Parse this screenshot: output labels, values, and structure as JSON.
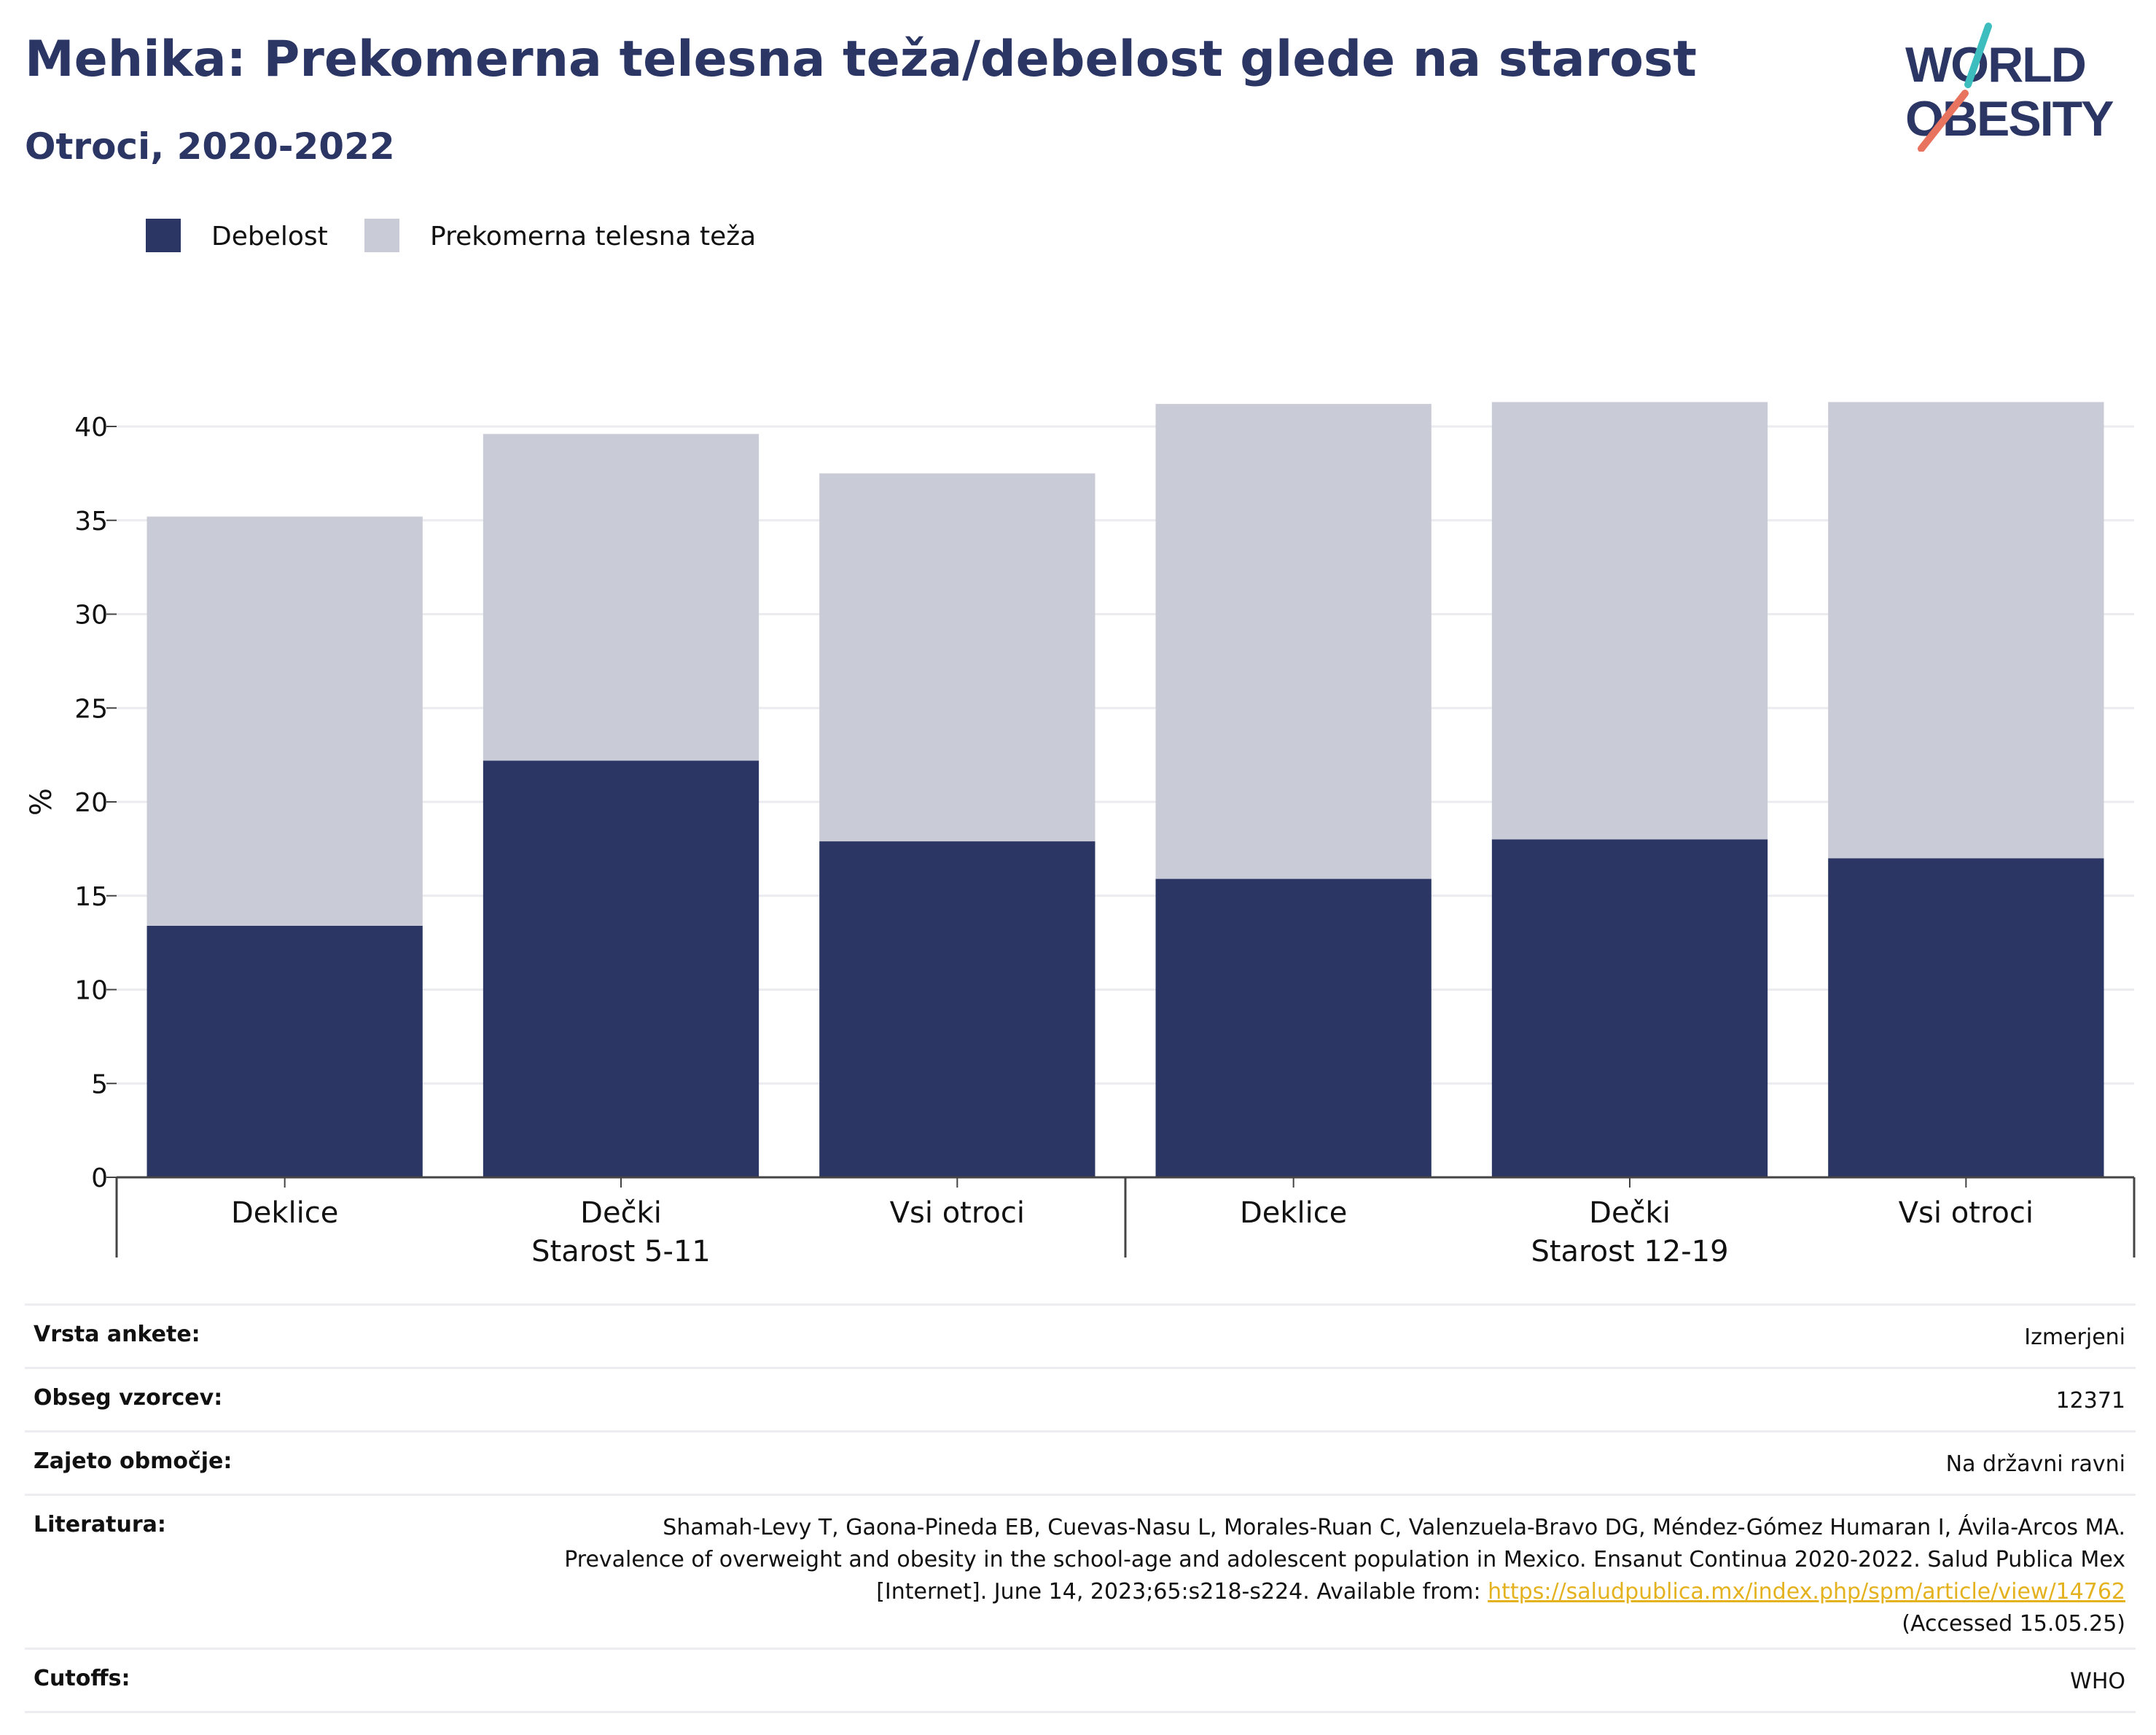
{
  "header": {
    "title": "Mehika: Prekomerna telesna teža/debelost glede na starost",
    "subtitle": "Otroci, 2020-2022"
  },
  "logo": {
    "line1": "WORLD",
    "line2": "OBESITY",
    "icon": "world-obesity-logo",
    "accent_teal": "#3dbdbd",
    "accent_coral": "#e8735e",
    "text_color": "#2b3664"
  },
  "chart_data": {
    "type": "bar",
    "stacked": true,
    "categories": [
      "Deklice",
      "Dečki",
      "Vsi otroci",
      "Deklice",
      "Dečki",
      "Vsi otroci"
    ],
    "groups": [
      {
        "label": "Starost 5-11",
        "indices": [
          0,
          1,
          2
        ]
      },
      {
        "label": "Starost 12-19",
        "indices": [
          3,
          4,
          5
        ]
      }
    ],
    "series": [
      {
        "name": "Debelost",
        "color": "#2b3664",
        "values": [
          13.4,
          22.2,
          17.9,
          15.9,
          18.0,
          17.0
        ]
      },
      {
        "name": "Prekomerna telesna teža",
        "color": "#c9cbd7",
        "values": [
          21.8,
          17.4,
          19.6,
          25.3,
          23.3,
          24.3
        ]
      }
    ],
    "ylabel": "%",
    "ylim": [
      0,
      42
    ],
    "yticks": [
      0,
      5,
      10,
      15,
      20,
      25,
      30,
      35,
      40
    ],
    "grid": true,
    "legend_position": "top-left"
  },
  "meta": {
    "rows": [
      {
        "label": "Vrsta ankete:",
        "value": "Izmerjeni"
      },
      {
        "label": "Obseg vzorcev:",
        "value": "12371"
      },
      {
        "label": "Zajeto območje:",
        "value": "Na državni ravni"
      },
      {
        "label": "Literatura:",
        "value": "Shamah-Levy T, Gaona-Pineda EB, Cuevas-Nasu L, Morales-Ruan C, Valenzuela-Bravo DG, Méndez-Gómez Humaran I, Ávila-Arcos MA. Prevalence of overweight and obesity in the school-age and adolescent population in Mexico. Ensanut Continua 2020-2022. Salud Publica Mex [Internet]. June 14, 2023;65:s218-s224. Available from:",
        "link": "https://saludpublica.mx/index.php/spm/article/view/14762",
        "suffix": "(Accessed 15.05.25)"
      },
      {
        "label": "Cutoffs:",
        "value": "WHO"
      }
    ]
  }
}
